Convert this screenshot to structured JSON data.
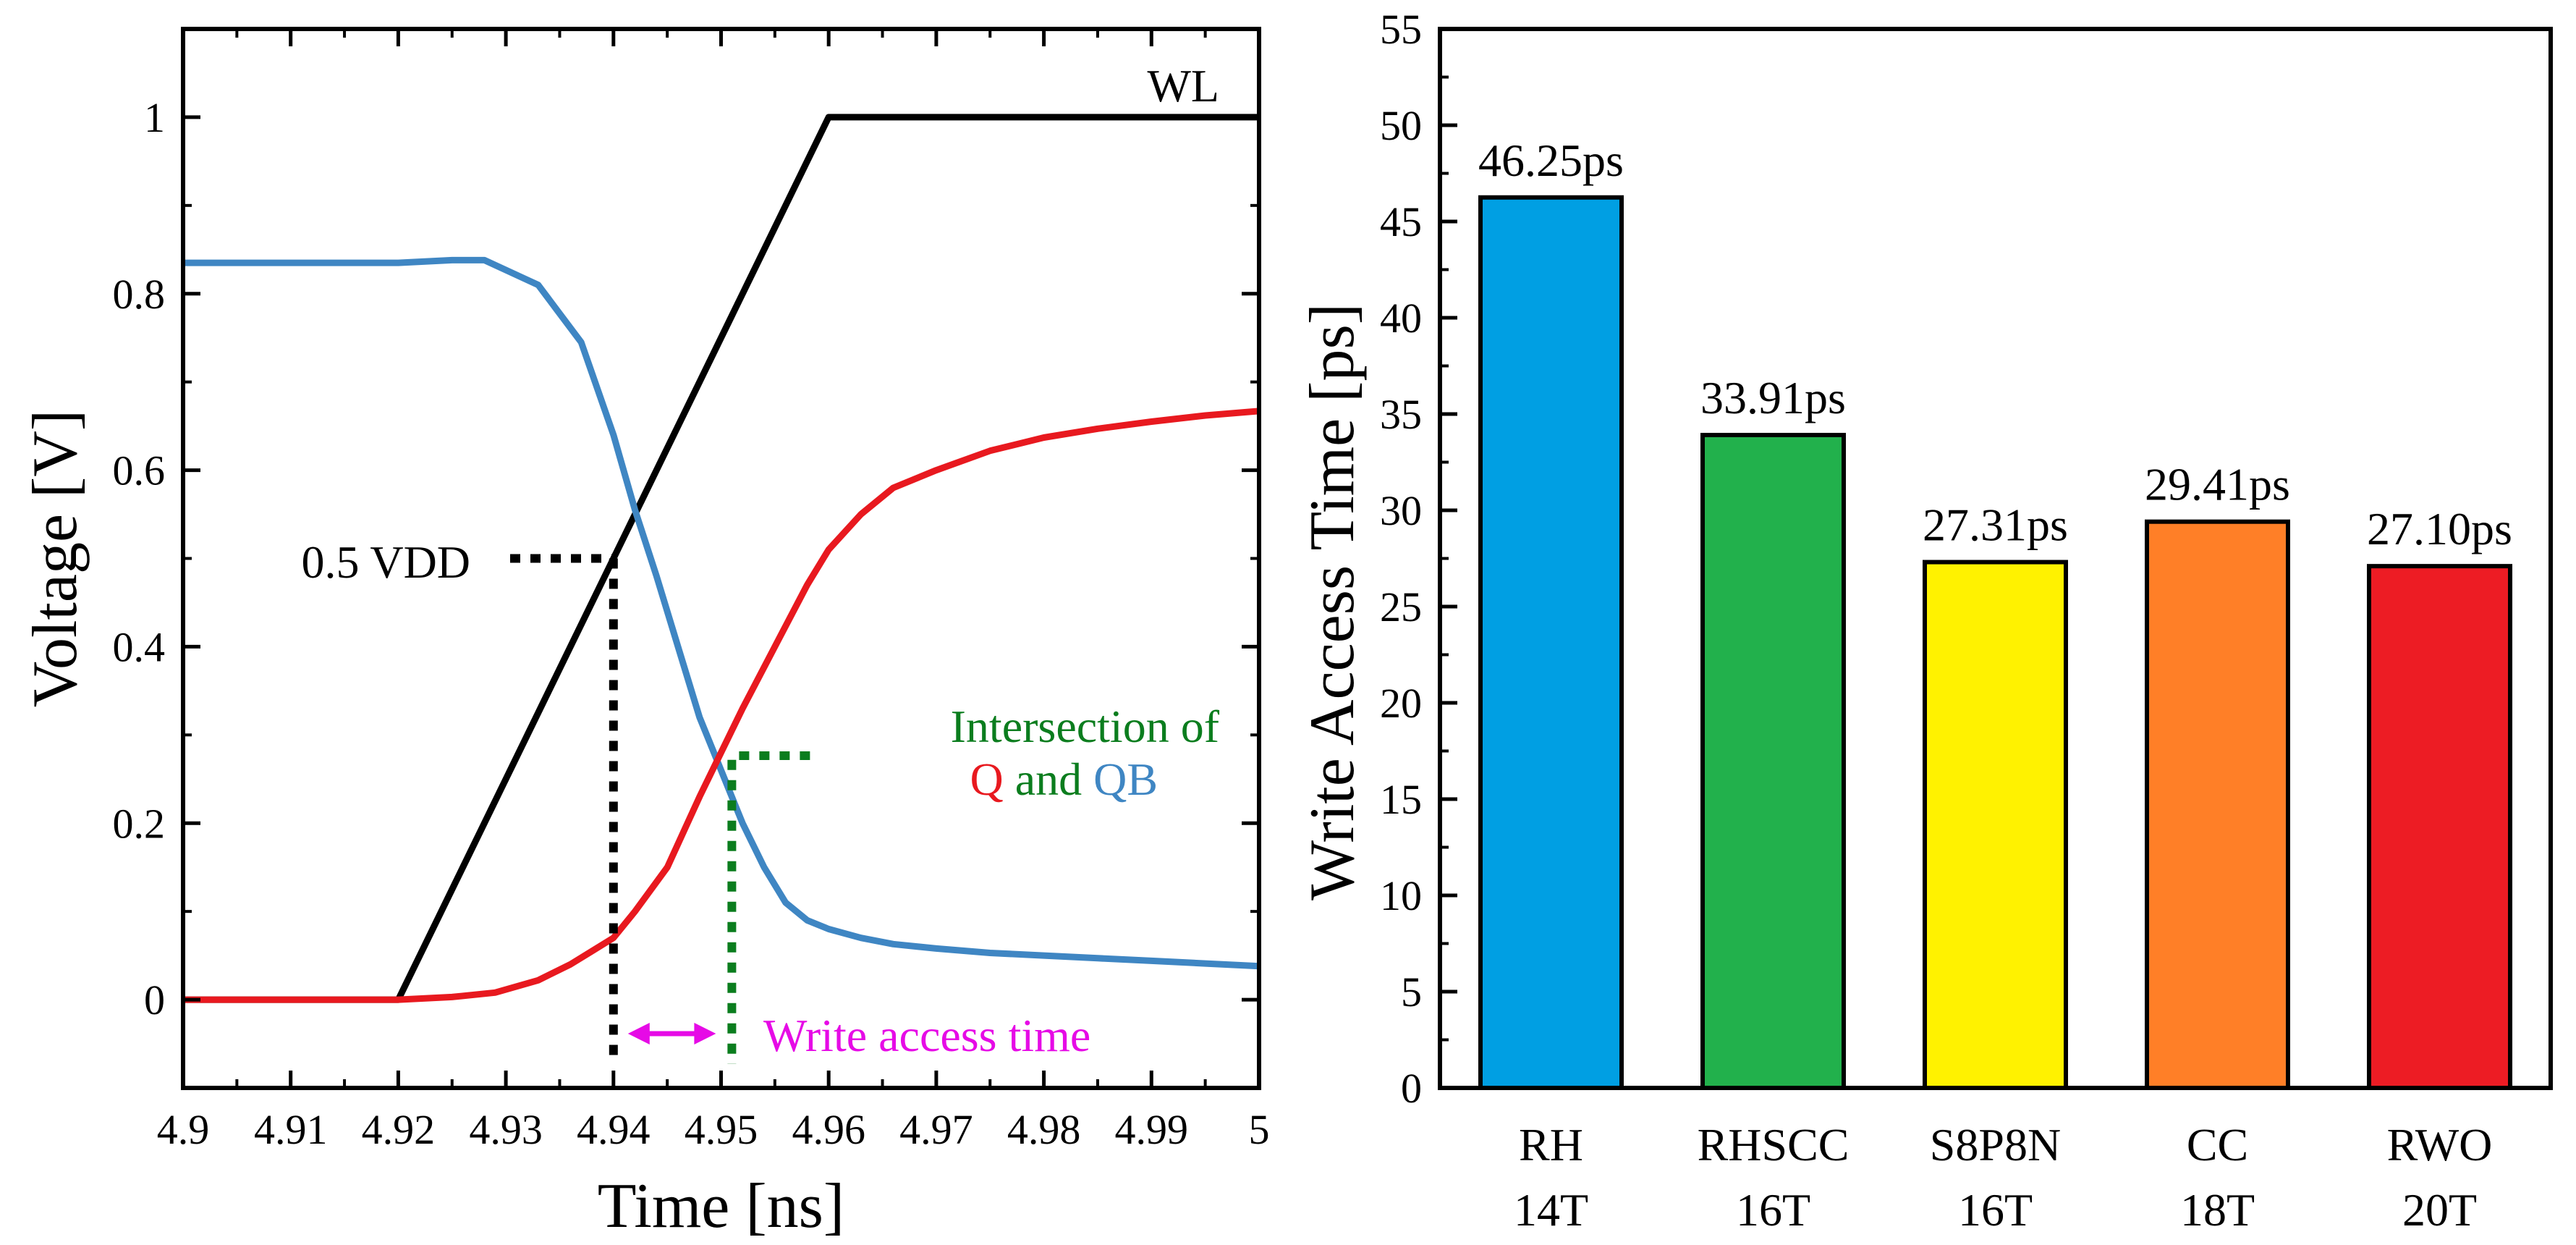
{
  "chart_data": [
    {
      "type": "line",
      "xlabel": "Time [ns]",
      "ylabel": "Voltage [V]",
      "xlim": [
        4.9,
        5.0
      ],
      "ylim": [
        -0.1,
        1.1
      ],
      "x_ticks": [
        "4.9",
        "4.91",
        "4.92",
        "4.93",
        "4.94",
        "4.95",
        "4.96",
        "4.97",
        "4.98",
        "4.99",
        "5"
      ],
      "y_ticks": [
        "0",
        "0.2",
        "0.4",
        "0.6",
        "0.8",
        "1"
      ],
      "grid": false,
      "series": [
        {
          "name": "WL",
          "color": "#000000",
          "x": [
            4.9,
            4.92,
            4.96,
            5.0
          ],
          "y": [
            0,
            0,
            1,
            1
          ]
        },
        {
          "name": "Q",
          "color": "#e8191f",
          "x": [
            4.9,
            4.92,
            4.925,
            4.929,
            4.933,
            4.936,
            4.938,
            4.94,
            4.942,
            4.945,
            4.948,
            4.95,
            4.952,
            4.955,
            4.958,
            4.96,
            4.963,
            4.966,
            4.97,
            4.975,
            4.98,
            4.985,
            4.99,
            4.995,
            5.0
          ],
          "y": [
            0,
            0,
            0.003,
            0.008,
            0.022,
            0.04,
            0.055,
            0.07,
            0.1,
            0.15,
            0.23,
            0.28,
            0.33,
            0.4,
            0.47,
            0.51,
            0.55,
            0.58,
            0.6,
            0.622,
            0.637,
            0.647,
            0.655,
            0.662,
            0.667
          ]
        },
        {
          "name": "QB",
          "color": "#3f86c3",
          "x": [
            4.9,
            4.92,
            4.925,
            4.928,
            4.933,
            4.937,
            4.94,
            4.942,
            4.944,
            4.946,
            4.948,
            4.95,
            4.952,
            4.954,
            4.956,
            4.958,
            4.96,
            4.963,
            4.966,
            4.97,
            4.975,
            4.98,
            4.985,
            4.99,
            4.995,
            5.0
          ],
          "y": [
            0.835,
            0.835,
            0.838,
            0.838,
            0.81,
            0.745,
            0.64,
            0.555,
            0.48,
            0.4,
            0.32,
            0.26,
            0.2,
            0.15,
            0.11,
            0.09,
            0.08,
            0.07,
            0.063,
            0.058,
            0.053,
            0.05,
            0.047,
            0.044,
            0.041,
            0.038
          ]
        }
      ],
      "annotations": {
        "wl_label": "WL",
        "half_vdd_label": "0.5 VDD",
        "intersection_line1": "Intersection of",
        "intersection_q": "Q",
        "intersection_and": "and",
        "intersection_qb": "QB",
        "write_access_label": "Write access time",
        "half_vdd_point": [
          4.94,
          0.5
        ],
        "intersection_point": [
          4.951,
          0.28
        ]
      },
      "colors": {
        "guide_black": "#000000",
        "guide_green": "#0b7d1e",
        "arrow_magenta": "#e60ae6"
      }
    },
    {
      "type": "bar",
      "ylabel": "Write Access Time [ps]",
      "ylim": [
        0,
        55
      ],
      "y_ticks": [
        "0",
        "5",
        "10",
        "15",
        "20",
        "25",
        "30",
        "35",
        "40",
        "45",
        "50",
        "55"
      ],
      "grid": false,
      "categories": [
        {
          "line1": "RH",
          "line2": "14T"
        },
        {
          "line1": "RHSCC",
          "line2": "16T"
        },
        {
          "line1": "S8P8N",
          "line2": "16T"
        },
        {
          "line1": "CC",
          "line2": "18T"
        },
        {
          "line1": "RWO",
          "line2": "20T"
        }
      ],
      "values": [
        46.25,
        33.91,
        27.31,
        29.41,
        27.1
      ],
      "data_labels": [
        "46.25ps",
        "33.91ps",
        "27.31ps",
        "29.41ps",
        "27.10ps"
      ],
      "colors": [
        "#009fe3",
        "#22b14c",
        "#fff200",
        "#ff7f27",
        "#ed1c24"
      ]
    }
  ]
}
